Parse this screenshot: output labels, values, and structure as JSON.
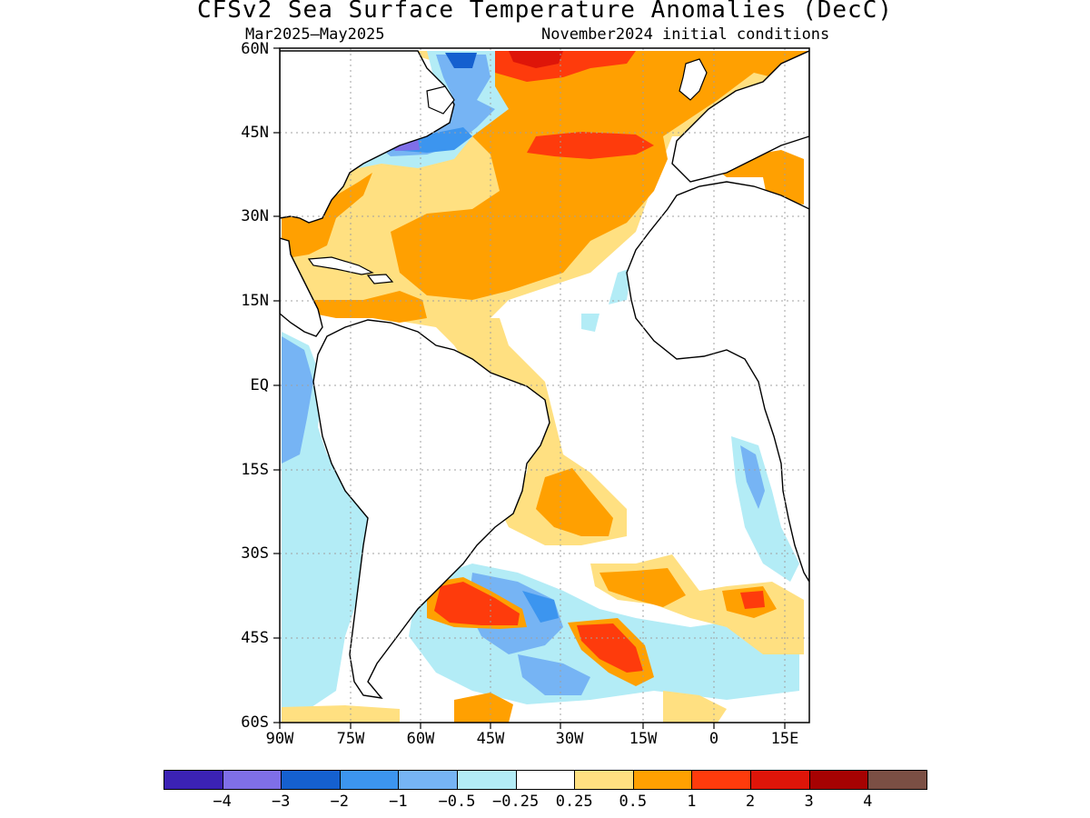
{
  "title": "CFSv2 Sea Surface Temperature Anomalies (DecC)",
  "subtitle_left": "Mar2025–May2025",
  "subtitle_right": "November2024 initial conditions",
  "lat_labels": [
    "60N",
    "45N",
    "30N",
    "15N",
    "EQ",
    "15S",
    "30S",
    "45S",
    "60S"
  ],
  "lon_labels": [
    "90W",
    "75W",
    "60W",
    "45W",
    "30W",
    "15W",
    "0",
    "15E"
  ],
  "colorbar": {
    "colors": [
      "#3b22b4",
      "#7f6fe8",
      "#1560cf",
      "#3c95ef",
      "#76b4f4",
      "#b3ecf6",
      "#ffffff",
      "#ffe081",
      "#ffa001",
      "#fe3b0c",
      "#de1509",
      "#a60202",
      "#7b4f44"
    ],
    "labels": [
      "−4",
      "−3",
      "−2",
      "−1",
      "−0.5",
      "−0.25",
      "0.25",
      "0.5",
      "1",
      "2",
      "3",
      "4"
    ]
  }
}
